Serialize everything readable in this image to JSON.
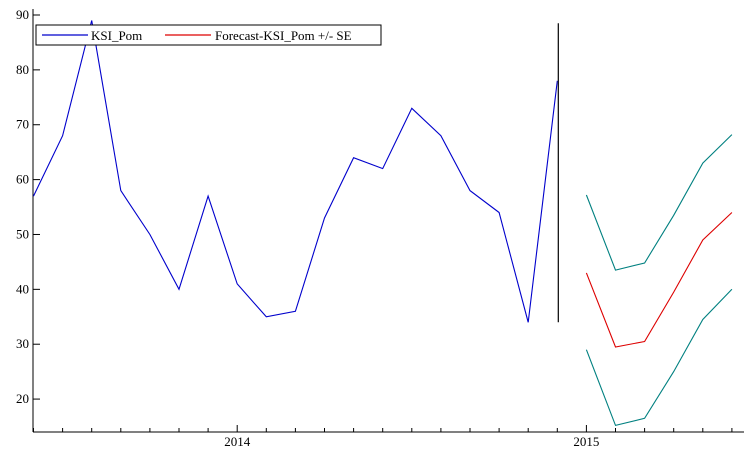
{
  "chart_data": {
    "type": "line",
    "title": "",
    "xlabel": "",
    "ylabel": "",
    "ylim": [
      14,
      90
    ],
    "y_ticks": [
      20,
      30,
      40,
      50,
      60,
      70,
      80,
      90
    ],
    "x_tick_labels": [
      {
        "label": "2014",
        "month_index": 7
      },
      {
        "label": "2015",
        "month_index": 19
      }
    ],
    "grid": false,
    "legend_position": "top-left",
    "forecast_origin_month_index": 18,
    "series": [
      {
        "name": "KSI_Pom",
        "color": "#0000cc",
        "x": [
          0,
          1,
          2,
          3,
          4,
          5,
          6,
          7,
          8,
          9,
          10,
          11,
          12,
          13,
          14,
          15,
          16,
          17,
          18
        ],
        "values": [
          57,
          68,
          89,
          58,
          50,
          40,
          57,
          41,
          35,
          36,
          53,
          64,
          62,
          73,
          68,
          58,
          54,
          34,
          78
        ]
      },
      {
        "name": "Forecast-KSI_Pom +/- SE",
        "color": "#dd0000",
        "x": [
          19,
          20,
          21,
          22,
          23,
          24
        ],
        "values": [
          43,
          29.5,
          30.5,
          39.5,
          49,
          54
        ]
      },
      {
        "name": "",
        "color": "#008080",
        "x": [
          19,
          20,
          21,
          22,
          23,
          24
        ],
        "values": [
          57.2,
          43.5,
          44.8,
          53.5,
          63,
          68.2
        ]
      },
      {
        "name": "",
        "color": "#008080",
        "x": [
          19,
          20,
          21,
          22,
          23,
          24
        ],
        "values": [
          29,
          15.2,
          16.5,
          25,
          34.5,
          40
        ]
      }
    ]
  }
}
